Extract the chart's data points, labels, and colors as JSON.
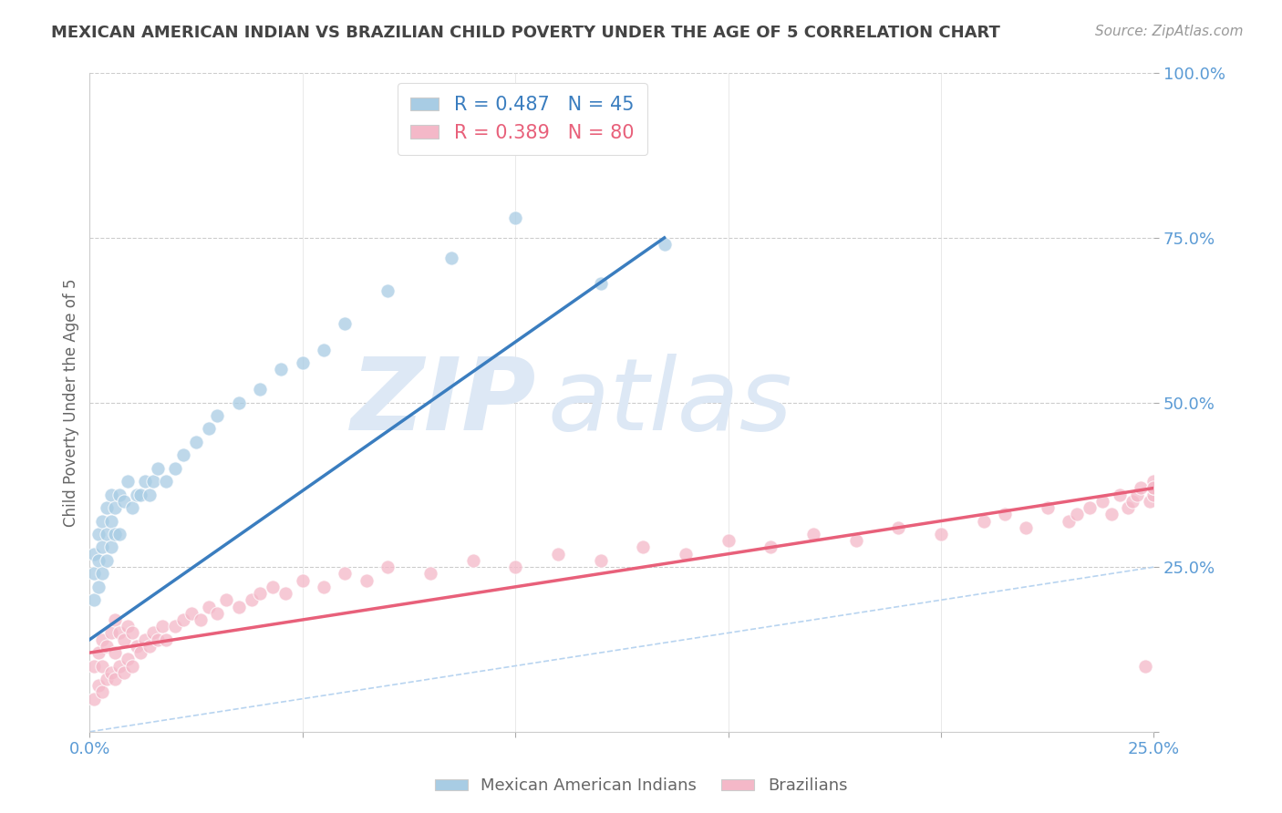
{
  "title": "MEXICAN AMERICAN INDIAN VS BRAZILIAN CHILD POVERTY UNDER THE AGE OF 5 CORRELATION CHART",
  "source_text": "Source: ZipAtlas.com",
  "ylabel": "Child Poverty Under the Age of 5",
  "xlim": [
    0,
    0.25
  ],
  "ylim": [
    0,
    1.0
  ],
  "blue_R": 0.487,
  "blue_N": 45,
  "pink_R": 0.389,
  "pink_N": 80,
  "blue_color": "#a8cce4",
  "pink_color": "#f4b8c8",
  "blue_line_color": "#3a7dbf",
  "pink_line_color": "#e8607a",
  "ref_line_color": "#b8d4f0",
  "grid_color": "#cccccc",
  "background_color": "#ffffff",
  "title_color": "#444444",
  "watermark_color": "#dde8f5",
  "blue_line_x": [
    0.0,
    0.135
  ],
  "blue_line_y": [
    0.14,
    0.75
  ],
  "pink_line_x": [
    0.0,
    0.25
  ],
  "pink_line_y": [
    0.12,
    0.37
  ],
  "ref_line_x": [
    0.0,
    1.0
  ],
  "ref_line_y": [
    0.0,
    1.0
  ],
  "blue_scatter_x": [
    0.001,
    0.001,
    0.001,
    0.002,
    0.002,
    0.002,
    0.003,
    0.003,
    0.003,
    0.004,
    0.004,
    0.004,
    0.005,
    0.005,
    0.005,
    0.006,
    0.006,
    0.007,
    0.007,
    0.008,
    0.009,
    0.01,
    0.011,
    0.012,
    0.013,
    0.014,
    0.015,
    0.016,
    0.018,
    0.02,
    0.022,
    0.025,
    0.028,
    0.03,
    0.035,
    0.04,
    0.045,
    0.05,
    0.055,
    0.06,
    0.07,
    0.085,
    0.1,
    0.12,
    0.135
  ],
  "blue_scatter_y": [
    0.2,
    0.24,
    0.27,
    0.22,
    0.26,
    0.3,
    0.24,
    0.28,
    0.32,
    0.26,
    0.3,
    0.34,
    0.28,
    0.32,
    0.36,
    0.3,
    0.34,
    0.3,
    0.36,
    0.35,
    0.38,
    0.34,
    0.36,
    0.36,
    0.38,
    0.36,
    0.38,
    0.4,
    0.38,
    0.4,
    0.42,
    0.44,
    0.46,
    0.48,
    0.5,
    0.52,
    0.55,
    0.56,
    0.58,
    0.62,
    0.67,
    0.72,
    0.78,
    0.68,
    0.74
  ],
  "pink_scatter_x": [
    0.001,
    0.001,
    0.002,
    0.002,
    0.003,
    0.003,
    0.003,
    0.004,
    0.004,
    0.005,
    0.005,
    0.006,
    0.006,
    0.006,
    0.007,
    0.007,
    0.008,
    0.008,
    0.009,
    0.009,
    0.01,
    0.01,
    0.011,
    0.012,
    0.013,
    0.014,
    0.015,
    0.016,
    0.017,
    0.018,
    0.02,
    0.022,
    0.024,
    0.026,
    0.028,
    0.03,
    0.032,
    0.035,
    0.038,
    0.04,
    0.043,
    0.046,
    0.05,
    0.055,
    0.06,
    0.065,
    0.07,
    0.08,
    0.09,
    0.1,
    0.11,
    0.12,
    0.13,
    0.14,
    0.15,
    0.16,
    0.17,
    0.18,
    0.19,
    0.2,
    0.21,
    0.215,
    0.22,
    0.225,
    0.23,
    0.232,
    0.235,
    0.238,
    0.24,
    0.242,
    0.244,
    0.245,
    0.246,
    0.247,
    0.248,
    0.249,
    0.25,
    0.25,
    0.25,
    0.25
  ],
  "pink_scatter_y": [
    0.05,
    0.1,
    0.07,
    0.12,
    0.06,
    0.1,
    0.14,
    0.08,
    0.13,
    0.09,
    0.15,
    0.08,
    0.12,
    0.17,
    0.1,
    0.15,
    0.09,
    0.14,
    0.11,
    0.16,
    0.1,
    0.15,
    0.13,
    0.12,
    0.14,
    0.13,
    0.15,
    0.14,
    0.16,
    0.14,
    0.16,
    0.17,
    0.18,
    0.17,
    0.19,
    0.18,
    0.2,
    0.19,
    0.2,
    0.21,
    0.22,
    0.21,
    0.23,
    0.22,
    0.24,
    0.23,
    0.25,
    0.24,
    0.26,
    0.25,
    0.27,
    0.26,
    0.28,
    0.27,
    0.29,
    0.28,
    0.3,
    0.29,
    0.31,
    0.3,
    0.32,
    0.33,
    0.31,
    0.34,
    0.32,
    0.33,
    0.34,
    0.35,
    0.33,
    0.36,
    0.34,
    0.35,
    0.36,
    0.37,
    0.1,
    0.35,
    0.36,
    0.37,
    0.38,
    0.37
  ]
}
